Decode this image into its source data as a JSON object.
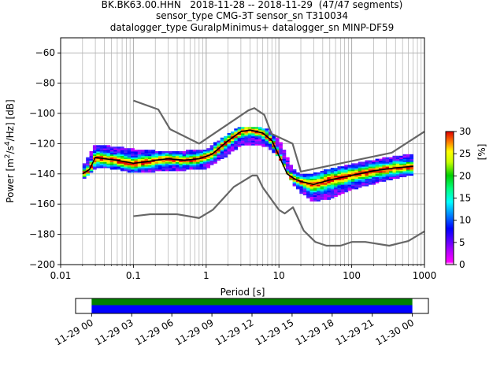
{
  "title_lines": [
    "BK.BK63.00.HHN   2018-11-28 -- 2018-11-29  (47/47 segments)",
    "sensor_type CMG-3T sensor_sn T310034",
    "datalogger_type GuralpMinimus+ datalogger_sn MINP-DF59"
  ],
  "colors": {
    "noise_model": "#666666",
    "mode_line": "#000000",
    "grid": "#b0b0b0",
    "coverage_top": "#008000",
    "coverage_bottom": "#0000ff"
  },
  "chart_data": [
    {
      "type": "heatmap",
      "subtype": "probabilistic-power-spectral-density",
      "xlabel": "Period [s]",
      "ylabel": "Power [m²/s⁴/Hz] [dB]",
      "xscale": "log",
      "xlim": [
        0.01,
        1000
      ],
      "ylim": [
        -200,
        -50
      ],
      "x_ticks": [
        0.01,
        0.1,
        1,
        10,
        100,
        1000
      ],
      "x_tick_labels": [
        "0.01",
        "0.1",
        "1",
        "10",
        "100",
        "1000"
      ],
      "y_ticks": [
        -200,
        -180,
        -160,
        -140,
        -120,
        -100,
        -80,
        -60
      ],
      "y_tick_labels": [
        "−200",
        "−180",
        "−160",
        "−140",
        "−120",
        "−100",
        "−80",
        "−60"
      ],
      "grid": true,
      "colorbar": {
        "label": "[%]",
        "range": [
          0,
          30
        ],
        "ticks": [
          0,
          5,
          10,
          15,
          20,
          25,
          30
        ],
        "tick_labels": [
          "0",
          "5",
          "10",
          "15",
          "20",
          "25",
          "30"
        ]
      },
      "psd_envelope": [
        {
          "period": 0.02,
          "db_min": -143,
          "db_max": -136
        },
        {
          "period": 0.03,
          "db_min": -136,
          "db_max": -121
        },
        {
          "period": 0.05,
          "db_min": -136,
          "db_max": -122
        },
        {
          "period": 0.1,
          "db_min": -139,
          "db_max": -124
        },
        {
          "period": 0.2,
          "db_min": -138,
          "db_max": -125
        },
        {
          "period": 0.5,
          "db_min": -137,
          "db_max": -125
        },
        {
          "period": 1,
          "db_min": -136,
          "db_max": -124
        },
        {
          "period": 2,
          "db_min": -127,
          "db_max": -114
        },
        {
          "period": 3,
          "db_min": -121,
          "db_max": -109
        },
        {
          "period": 5,
          "db_min": -120,
          "db_max": -109
        },
        {
          "period": 7,
          "db_min": -122,
          "db_max": -111
        },
        {
          "period": 10,
          "db_min": -128,
          "db_max": -117
        },
        {
          "period": 15,
          "db_min": -145,
          "db_max": -136
        },
        {
          "period": 20,
          "db_min": -152,
          "db_max": -141
        },
        {
          "period": 30,
          "db_min": -158,
          "db_max": -140
        },
        {
          "period": 50,
          "db_min": -156,
          "db_max": -137
        },
        {
          "period": 100,
          "db_min": -150,
          "db_max": -134
        },
        {
          "period": 200,
          "db_min": -146,
          "db_max": -131
        },
        {
          "period": 700,
          "db_min": -140,
          "db_max": -127
        }
      ],
      "mode_line": {
        "period": [
          0.02,
          0.025,
          0.03,
          0.04,
          0.06,
          0.1,
          0.15,
          0.2,
          0.3,
          0.5,
          0.8,
          1.2,
          2,
          3,
          4,
          5,
          6,
          8,
          10,
          13,
          16,
          20,
          30,
          50,
          100,
          200,
          400,
          700
        ],
        "db": [
          -140,
          -137,
          -129,
          -130,
          -131,
          -133,
          -132,
          -131,
          -130,
          -131,
          -130,
          -127,
          -118,
          -112,
          -111,
          -112,
          -113,
          -118,
          -128,
          -140,
          -143,
          -145,
          -147,
          -144,
          -141,
          -138,
          -136,
          -135
        ]
      },
      "noise_models": [
        {
          "period": [
            0.1,
            0.22,
            0.32,
            0.8,
            3.8,
            4.6,
            6.3,
            7.9,
            15.4,
            20,
            354.8,
            1000
          ],
          "db": [
            -91.5,
            -97.4,
            -110.5,
            -120,
            -98,
            -96.5,
            -101,
            -113.5,
            -120,
            -138.5,
            -126,
            -112
          ]
        },
        {
          "period": [
            0.1,
            0.17,
            0.4,
            0.8,
            1.24,
            2.4,
            4.3,
            5,
            6,
            10,
            12,
            15.6,
            21.9,
            31.6,
            45,
            70,
            101,
            154,
            328,
            600,
            1000
          ],
          "db": [
            -168,
            -166.7,
            -166.7,
            -169.2,
            -163.7,
            -148.6,
            -141.1,
            -141.1,
            -149,
            -163.8,
            -166.2,
            -162.1,
            -177.5,
            -185,
            -187.5,
            -187.5,
            -185,
            -185,
            -187.5,
            -184.4,
            -178
          ]
        }
      ]
    },
    {
      "type": "timeline",
      "subtype": "data-coverage",
      "tick_labels": [
        "11-29 00",
        "11-29 03",
        "11-29 06",
        "11-29 09",
        "11-29 12",
        "11-29 15",
        "11-29 18",
        "11-29 21",
        "11-30 00"
      ],
      "xlim_hours": [
        -1.2,
        25.2
      ],
      "coverage_hours": [
        0,
        24
      ]
    }
  ]
}
